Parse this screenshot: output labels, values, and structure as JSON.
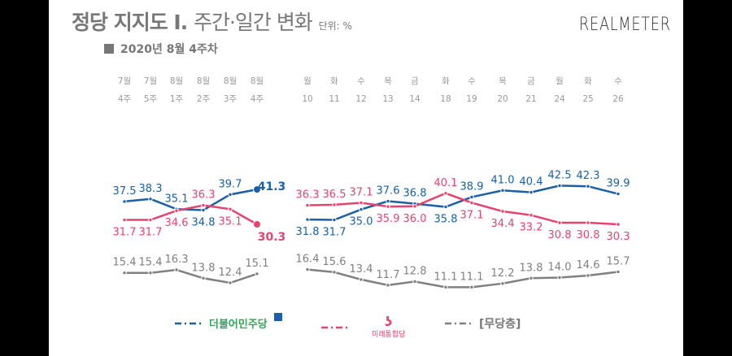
{
  "header": {
    "title_bold": "정당 지지도 Ⅰ.",
    "title_light": "주간·일간 변화",
    "unit": "단위: %",
    "subtitle": "2020년 8월 4주차",
    "brand": "REALMETER"
  },
  "chart_data": {
    "type": "line",
    "title": "정당 지지도 Ⅰ. 주간·일간 변화",
    "unit": "%",
    "weekly": {
      "categories": [
        [
          "7월",
          "4주"
        ],
        [
          "7월",
          "5주"
        ],
        [
          "8월",
          "1주"
        ],
        [
          "8월",
          "2주"
        ],
        [
          "8월",
          "3주"
        ],
        [
          "8월",
          "4주"
        ]
      ],
      "series": [
        {
          "name": "더불어민주당",
          "color": "#1a5fa8",
          "values": [
            37.5,
            38.3,
            35.1,
            34.8,
            39.7,
            41.3
          ]
        },
        {
          "name": "미래통합당",
          "color": "#e8436e",
          "values": [
            31.7,
            31.7,
            34.6,
            36.3,
            35.1,
            30.3
          ]
        },
        {
          "name": "[무당층]",
          "color": "#808080",
          "values": [
            15.4,
            15.4,
            16.3,
            13.8,
            12.4,
            15.1
          ]
        }
      ]
    },
    "daily": {
      "categories": [
        [
          "월",
          "10"
        ],
        [
          "화",
          "11"
        ],
        [
          "수",
          "12"
        ],
        [
          "목",
          "13"
        ],
        [
          "금",
          "14"
        ],
        [
          "화",
          "18"
        ],
        [
          "수",
          "19"
        ],
        [
          "목",
          "20"
        ],
        [
          "금",
          "21"
        ],
        [
          "월",
          "24"
        ],
        [
          "화",
          "25"
        ],
        [
          "수",
          "26"
        ]
      ],
      "series": [
        {
          "name": "더불어민주당",
          "color": "#1a5fa8",
          "values": [
            31.8,
            31.7,
            35.0,
            37.6,
            36.8,
            35.8,
            38.9,
            41.0,
            40.4,
            42.5,
            42.3,
            39.9
          ]
        },
        {
          "name": "미래통합당",
          "color": "#e8436e",
          "values": [
            36.3,
            36.5,
            37.1,
            35.9,
            36.0,
            40.1,
            37.1,
            34.4,
            33.2,
            30.8,
            30.8,
            30.3
          ]
        },
        {
          "name": "[무당층]",
          "color": "#808080",
          "values": [
            16.4,
            15.6,
            13.4,
            11.7,
            12.8,
            11.1,
            11.1,
            12.2,
            13.8,
            14.0,
            14.6,
            15.7
          ]
        }
      ]
    },
    "legend": {
      "placement": "bottom",
      "items": [
        "더불어민주당",
        "미래통합당",
        "[무당층]"
      ]
    }
  }
}
